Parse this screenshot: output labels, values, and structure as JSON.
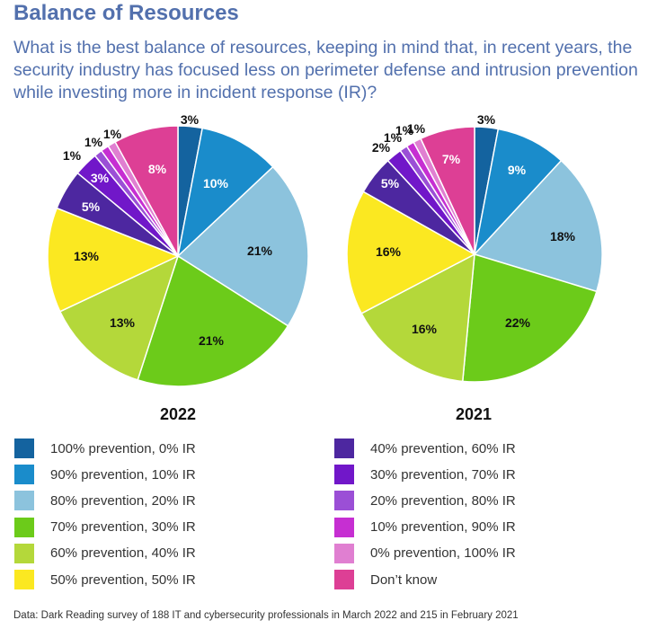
{
  "title": "Balance of Resources",
  "subtitle": "What is the best balance of resources, keeping in mind that, in recent years, the security industry has focused less on perimeter defense and intrusion prevention while investing more in incident response (IR)?",
  "source": "Data: Dark Reading survey of 188 IT and cybersecurity professionals in March 2022 and 215 in February 2021",
  "chart_data": [
    {
      "type": "pie",
      "title": "2022",
      "categories": [
        "100% prevention, 0% IR",
        "90% prevention, 10% IR",
        "80% prevention, 20% IR",
        "70% prevention, 30% IR",
        "60% prevention, 40% IR",
        "50% prevention, 50% IR",
        "40% prevention, 60% IR",
        "30% prevention, 70% IR",
        "20% prevention, 80% IR",
        "10% prevention, 90% IR",
        "0% prevention, 100% IR",
        "Don’t know"
      ],
      "values": [
        3,
        10,
        21,
        21,
        13,
        13,
        5,
        3,
        1,
        1,
        1,
        8
      ],
      "labels": [
        "3%",
        "10%",
        "21%",
        "21%",
        "13%",
        "13%",
        "5%",
        "3%",
        "1%",
        "1%",
        "1%",
        "8%"
      ]
    },
    {
      "type": "pie",
      "title": "2021",
      "categories": [
        "100% prevention, 0% IR",
        "90% prevention, 10% IR",
        "80% prevention, 20% IR",
        "70% prevention, 30% IR",
        "60% prevention, 40% IR",
        "50% prevention, 50% IR",
        "40% prevention, 60% IR",
        "30% prevention, 70% IR",
        "20% prevention, 80% IR",
        "10% prevention, 90% IR",
        "0% prevention, 100% IR",
        "Don’t know"
      ],
      "values": [
        3,
        9,
        18,
        22,
        16,
        16,
        5,
        2,
        1,
        1,
        1,
        7
      ],
      "labels": [
        "3%",
        "9%",
        "18%",
        "22%",
        "16%",
        "16%",
        "5%",
        "2%",
        "1%",
        "1%",
        "1%",
        "7%"
      ]
    }
  ],
  "legend": [
    {
      "label": "100% prevention, 0% IR",
      "color": "#14639f"
    },
    {
      "label": "90% prevention, 10% IR",
      "color": "#1a8ccb"
    },
    {
      "label": "80% prevention, 20% IR",
      "color": "#8cc3dd"
    },
    {
      "label": "70% prevention, 30% IR",
      "color": "#6ccb1a"
    },
    {
      "label": "60% prevention, 40% IR",
      "color": "#b4d83a"
    },
    {
      "label": "50% prevention, 50% IR",
      "color": "#fbe821"
    },
    {
      "label": "40% prevention, 60% IR",
      "color": "#4d27a0"
    },
    {
      "label": "30% prevention, 70% IR",
      "color": "#7117c9"
    },
    {
      "label": "20% prevention, 80% IR",
      "color": "#9b4fd6"
    },
    {
      "label": "10% prevention, 90% IR",
      "color": "#c62fd2"
    },
    {
      "label": "0% prevention, 100% IR",
      "color": "#e07fd1"
    },
    {
      "label": "Don’t know",
      "color": "#dd3f95"
    }
  ]
}
